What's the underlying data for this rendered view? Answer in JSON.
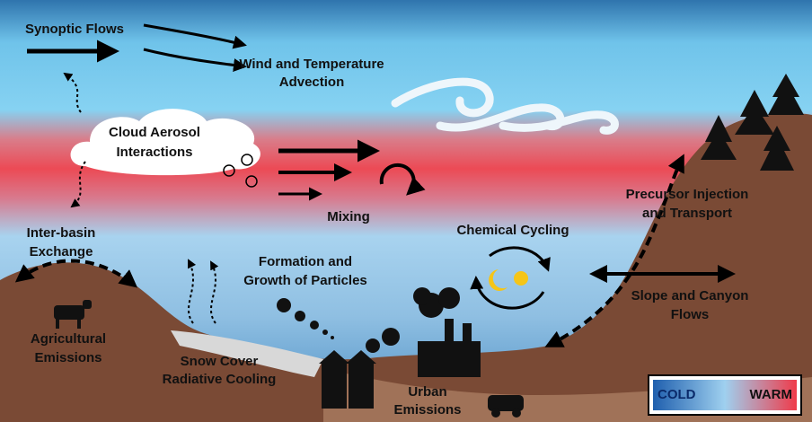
{
  "labels": [
    {
      "lines": [
        "Synoptic Flows"
      ]
    },
    {
      "lines": [
        "Wind and Temperature",
        "Advection"
      ]
    },
    {
      "lines": [
        "Cloud Aerosol",
        "Interactions"
      ]
    },
    {
      "lines": [
        "Mixing"
      ]
    },
    {
      "lines": [
        "Inter-basin",
        "Exchange"
      ]
    },
    {
      "lines": [
        "Agricultural",
        "Emissions"
      ]
    },
    {
      "lines": [
        "Formation and",
        "Growth of Particles"
      ]
    },
    {
      "lines": [
        "Snow Cover",
        "Radiative Cooling"
      ]
    },
    {
      "lines": [
        "Urban",
        "Emissions"
      ]
    },
    {
      "lines": [
        "Chemical Cycling"
      ]
    },
    {
      "lines": [
        "Precursor Injection",
        "and Transport"
      ]
    },
    {
      "lines": [
        "Slope and Canyon",
        "Flows"
      ]
    }
  ],
  "legend": {
    "cold": "COLD",
    "warm": "WARM"
  }
}
